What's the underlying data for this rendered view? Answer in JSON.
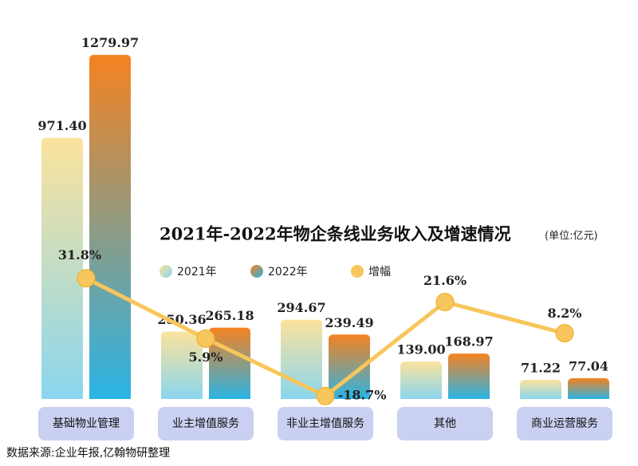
{
  "chart_data": {
    "type": "bar-line",
    "title": "2021年-2022年物企条线业务收入及增速情况",
    "subtitle": "(单位:亿元)",
    "source": "数据来源:企业年报,亿翰物研整理",
    "categories": [
      "基础物业管理",
      "业主增值服务",
      "非业主增值服务",
      "其他",
      "商业运营服务"
    ],
    "series": [
      {
        "name": "2021年",
        "colors": [
          "#fbe39c",
          "#8ad6ef"
        ],
        "values": [
          971.4,
          250.36,
          294.67,
          139.0,
          71.22
        ],
        "value_labels": [
          "971.40",
          "250.36",
          "294.67",
          "139.00",
          "71.22"
        ]
      },
      {
        "name": "2022年",
        "colors": [
          "#f58220",
          "#2ab4e6"
        ],
        "values": [
          1279.97,
          265.18,
          239.49,
          168.97,
          77.04
        ],
        "value_labels": [
          "1279.97",
          "265.18",
          "239.49",
          "168.97",
          "77.04"
        ]
      },
      {
        "name": "增幅",
        "axis": "y2",
        "type": "line",
        "color": "#f7c65c",
        "values": [
          31.8,
          5.9,
          -18.7,
          21.6,
          8.2
        ],
        "value_labels": [
          "31.8%",
          "5.9%",
          "-18.7%",
          "21.6%",
          "8.2%"
        ]
      }
    ],
    "ylim": [
      0,
      1300
    ],
    "y2lim": [
      -20,
      130
    ]
  }
}
